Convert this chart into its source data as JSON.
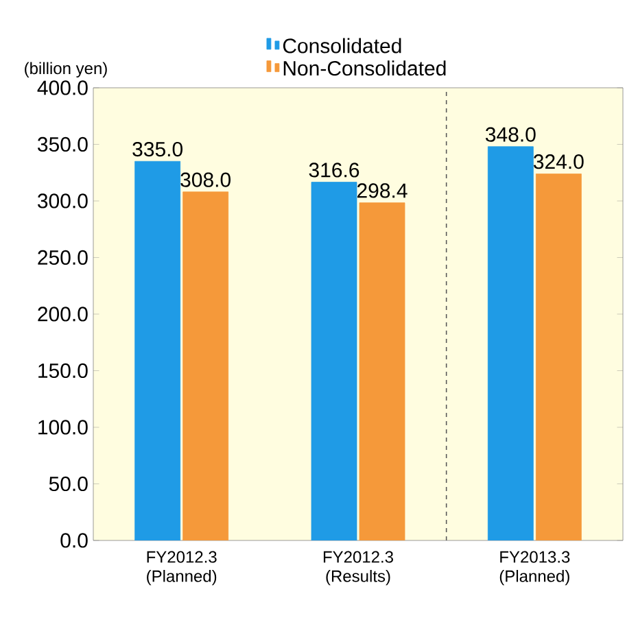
{
  "chart_data": {
    "type": "bar",
    "ylabel": "(billion yen)",
    "categories": [
      "FY2012.3 (Planned)",
      "FY2012.3 (Results)",
      "FY2013.3 (Planned)"
    ],
    "series": [
      {
        "name": "Consolidated",
        "color": "#1f9be6",
        "values": [
          335.0,
          316.6,
          348.0
        ],
        "value_labels": [
          "335.0",
          "316.6",
          "348.0"
        ]
      },
      {
        "name": "Non-Consolidated",
        "color": "#f5993a",
        "values": [
          308.0,
          298.4,
          324.0
        ],
        "value_labels": [
          "308.0",
          "298.4",
          "324.0"
        ]
      }
    ],
    "ylim": [
      0,
      400
    ],
    "yticks": [
      {
        "value": 0,
        "label": "0.0"
      },
      {
        "value": 50,
        "label": "50.0"
      },
      {
        "value": 100,
        "label": "100.0"
      },
      {
        "value": 150,
        "label": "150.0"
      },
      {
        "value": 200,
        "label": "200.0"
      },
      {
        "value": 250,
        "label": "250.0"
      },
      {
        "value": 300,
        "label": "300.0"
      },
      {
        "value": 350,
        "label": "350.0"
      },
      {
        "value": 400,
        "label": "400.0"
      }
    ],
    "grid": false,
    "legend": "top"
  }
}
